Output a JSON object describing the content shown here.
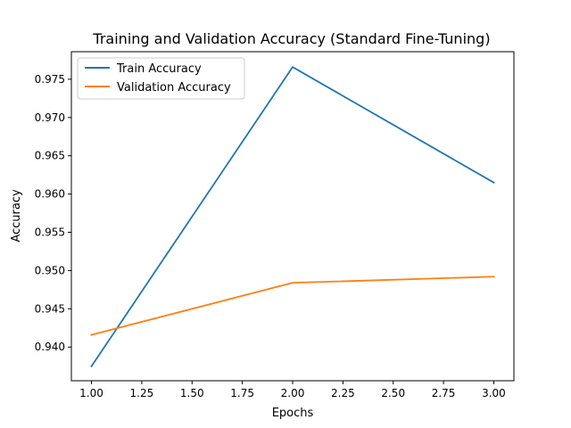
{
  "chart_data": {
    "type": "line",
    "title": "Training and Validation Accuracy (Standard Fine-Tuning)",
    "xlabel": "Epochs",
    "ylabel": "Accuracy",
    "x": [
      1.0,
      2.0,
      3.0
    ],
    "xlim": [
      0.9,
      3.1
    ],
    "ylim": [
      0.9356,
      0.9786
    ],
    "x_ticks": [
      "1.00",
      "1.25",
      "1.50",
      "1.75",
      "2.00",
      "2.25",
      "2.50",
      "2.75",
      "3.00"
    ],
    "y_ticks": [
      "0.940",
      "0.945",
      "0.950",
      "0.955",
      "0.960",
      "0.965",
      "0.970",
      "0.975"
    ],
    "grid": false,
    "legend_position": "upper-left",
    "series": [
      {
        "name": "Train Accuracy",
        "values": [
          0.9375,
          0.9766,
          0.9615
        ],
        "color": "#1f77b4"
      },
      {
        "name": "Validation Accuracy",
        "values": [
          0.9416,
          0.9484,
          0.9492
        ],
        "color": "#ff7f0e"
      }
    ]
  }
}
